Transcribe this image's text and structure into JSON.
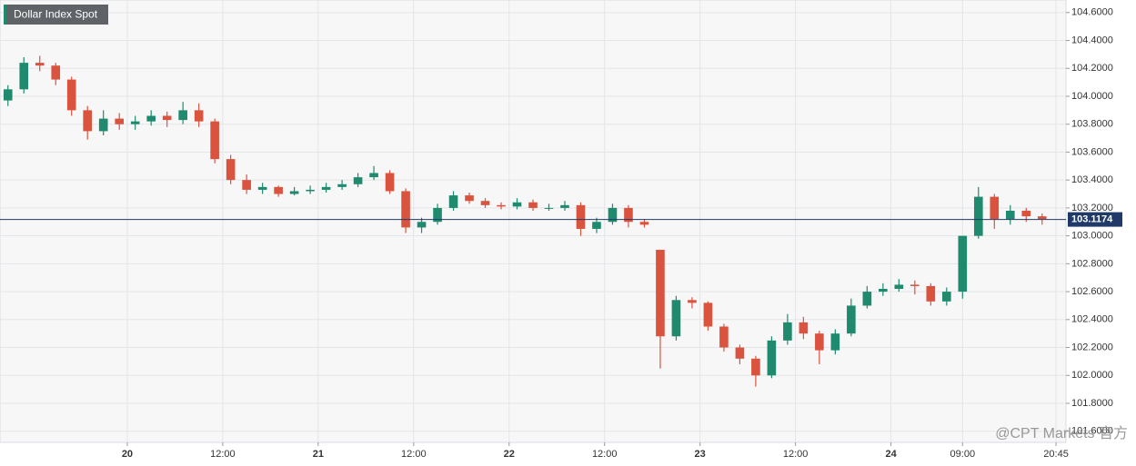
{
  "chart_data": {
    "type": "candlestick",
    "title": "Dollar Index Spot",
    "watermark": "@CPT Markets 官方",
    "up_color": "#1f8a6e",
    "down_color": "#d9533f",
    "grid": true,
    "current_price": 103.1174,
    "current_price_color": "#1f3a68",
    "xlim": [
      -16,
      118
    ],
    "xticks": [
      {
        "value": 0,
        "label": "20"
      },
      {
        "value": 12,
        "label": "12:00"
      },
      {
        "value": 24,
        "label": "21"
      },
      {
        "value": 36,
        "label": "12:00"
      },
      {
        "value": 48,
        "label": "22"
      },
      {
        "value": 60,
        "label": "12:00"
      },
      {
        "value": 72,
        "label": "23"
      },
      {
        "value": 84,
        "label": "12:00"
      },
      {
        "value": 96,
        "label": "24"
      },
      {
        "value": 105,
        "label": "09:00"
      },
      {
        "value": 116.75,
        "label": "20:45"
      }
    ],
    "ylim": [
      101.52,
      104.69
    ],
    "yticks": [
      {
        "value": 101.6,
        "label": "101.6000"
      },
      {
        "value": 101.8,
        "label": "101.8000"
      },
      {
        "value": 102,
        "label": "102.0000"
      },
      {
        "value": 102.2,
        "label": "102.2000"
      },
      {
        "value": 102.4,
        "label": "102.4000"
      },
      {
        "value": 102.6,
        "label": "102.6000"
      },
      {
        "value": 102.8,
        "label": "102.8000"
      },
      {
        "value": 103,
        "label": "103.0000"
      },
      {
        "value": 103.2,
        "label": "103.2000"
      },
      {
        "value": 103.4,
        "label": "103.4000"
      },
      {
        "value": 103.6,
        "label": "103.6000"
      },
      {
        "value": 103.8,
        "label": "103.8000"
      },
      {
        "value": 104,
        "label": "104.0000"
      },
      {
        "value": 104.2,
        "label": "104.2000"
      },
      {
        "value": 104.4,
        "label": "104.4000"
      },
      {
        "value": 104.6,
        "label": "104.6000"
      }
    ],
    "x": [
      -15,
      -13,
      -11,
      -9,
      -7,
      -5,
      -3,
      -1,
      1,
      3,
      5,
      7,
      9,
      11,
      13,
      15,
      17,
      19,
      21,
      23,
      25,
      27,
      29,
      31,
      33,
      35,
      37,
      39,
      41,
      43,
      45,
      47,
      49,
      51,
      53,
      55,
      57,
      59,
      61,
      63,
      65,
      67,
      69,
      71,
      73,
      75,
      77,
      79,
      81,
      83,
      85,
      87,
      89,
      91,
      93,
      95,
      97,
      99,
      101,
      103,
      105,
      107,
      109,
      111,
      113,
      115
    ],
    "open": [
      103.97,
      104.05,
      104.24,
      104.22,
      104.12,
      103.9,
      103.75,
      103.84,
      103.8,
      103.82,
      103.86,
      103.83,
      103.9,
      103.82,
      103.55,
      103.4,
      103.33,
      103.35,
      103.3,
      103.32,
      103.33,
      103.35,
      103.37,
      103.42,
      103.45,
      103.32,
      103.06,
      103.1,
      103.2,
      103.29,
      103.25,
      103.22,
      103.21,
      103.24,
      103.2,
      103.2,
      103.22,
      103.05,
      103.1,
      103.2,
      103.1,
      102.9,
      102.28,
      102.54,
      102.52,
      102.35,
      102.2,
      102.12,
      102.0,
      102.25,
      102.38,
      102.3,
      102.18,
      102.3,
      102.5,
      102.6,
      102.62,
      102.65,
      102.64,
      102.53,
      102.6,
      103.0,
      103.28,
      103.12,
      103.18,
      103.14
    ],
    "high": [
      104.08,
      104.28,
      104.29,
      104.24,
      104.14,
      103.93,
      103.9,
      103.88,
      103.86,
      103.9,
      103.89,
      103.96,
      103.95,
      103.84,
      103.58,
      103.44,
      103.38,
      103.36,
      103.35,
      103.36,
      103.38,
      103.4,
      103.45,
      103.5,
      103.47,
      103.34,
      103.13,
      103.23,
      103.32,
      103.31,
      103.27,
      103.24,
      103.27,
      103.26,
      103.23,
      103.25,
      103.24,
      103.13,
      103.23,
      103.22,
      103.12,
      102.9,
      102.57,
      102.56,
      102.53,
      102.37,
      102.22,
      102.14,
      102.28,
      102.44,
      102.42,
      102.32,
      102.33,
      102.55,
      102.64,
      102.66,
      102.69,
      102.68,
      102.66,
      102.63,
      103.0,
      103.35,
      103.3,
      103.22,
      103.2,
      103.16
    ],
    "low": [
      103.93,
      104.02,
      104.18,
      104.08,
      103.86,
      103.69,
      103.72,
      103.76,
      103.76,
      103.79,
      103.78,
      103.8,
      103.78,
      103.52,
      103.37,
      103.3,
      103.3,
      103.28,
      103.29,
      103.3,
      103.31,
      103.33,
      103.35,
      103.4,
      103.3,
      103.02,
      103.02,
      103.08,
      103.18,
      103.23,
      103.2,
      103.19,
      103.19,
      103.18,
      103.18,
      103.18,
      103.0,
      103.02,
      103.08,
      103.06,
      103.06,
      102.05,
      102.25,
      102.48,
      102.32,
      102.17,
      102.08,
      101.92,
      101.98,
      102.22,
      102.26,
      102.08,
      102.15,
      102.28,
      102.48,
      102.57,
      102.6,
      102.58,
      102.5,
      102.5,
      102.55,
      102.98,
      103.05,
      103.08,
      103.1,
      103.08
    ],
    "close": [
      104.05,
      104.24,
      104.22,
      104.12,
      103.9,
      103.75,
      103.84,
      103.8,
      103.82,
      103.86,
      103.83,
      103.9,
      103.82,
      103.55,
      103.4,
      103.33,
      103.35,
      103.3,
      103.32,
      103.33,
      103.35,
      103.37,
      103.42,
      103.45,
      103.32,
      103.06,
      103.1,
      103.2,
      103.29,
      103.25,
      103.22,
      103.21,
      103.24,
      103.2,
      103.2,
      103.22,
      103.05,
      103.1,
      103.2,
      103.1,
      103.08,
      102.28,
      102.54,
      102.52,
      102.35,
      102.2,
      102.12,
      102.0,
      102.25,
      102.38,
      102.3,
      102.18,
      102.3,
      102.5,
      102.6,
      102.62,
      102.65,
      102.64,
      102.53,
      102.6,
      103.0,
      103.28,
      103.12,
      103.18,
      103.14,
      103.12
    ]
  }
}
